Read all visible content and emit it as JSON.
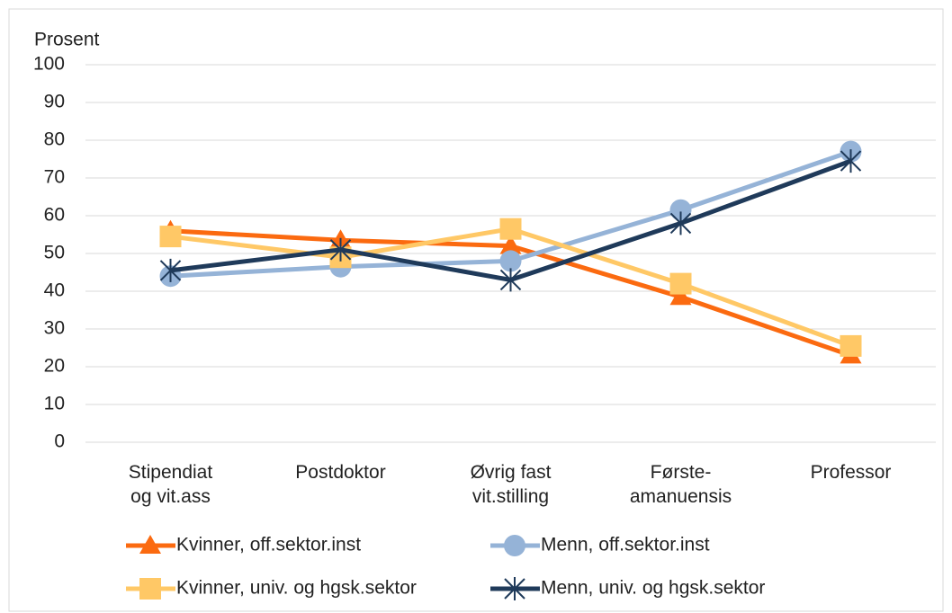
{
  "chart_data": {
    "type": "line",
    "y_label": "Prosent",
    "categories": [
      "Stipendiat\nog vit.ass",
      "Postdoktor",
      "Øvrig fast\nvit.stilling",
      "Første-\namanuensis",
      "Professor"
    ],
    "series": [
      {
        "name": "Kvinner, off.sektor.inst",
        "color": "#fb6a10",
        "marker": "triangle",
        "values": [
          56,
          53.5,
          52,
          38.5,
          23
        ]
      },
      {
        "name": "Menn, off.sektor.inst",
        "color": "#95b3d7",
        "marker": "circle",
        "values": [
          44,
          46.5,
          48,
          61.5,
          77
        ]
      },
      {
        "name": "Kvinner, univ. og hgsk.sektor",
        "color": "#ffc866",
        "marker": "square",
        "values": [
          54.5,
          49,
          56.5,
          42,
          25.5
        ]
      },
      {
        "name": "Menn, univ. og hgsk.sektor",
        "color": "#1f3a5a",
        "marker": "star",
        "values": [
          45.5,
          51,
          43,
          58,
          74.5
        ]
      }
    ],
    "ylim": [
      0,
      100
    ],
    "yticks": [
      0,
      10,
      20,
      30,
      40,
      50,
      60,
      70,
      80,
      90,
      100
    ],
    "grid": true,
    "legend": "bottom"
  }
}
